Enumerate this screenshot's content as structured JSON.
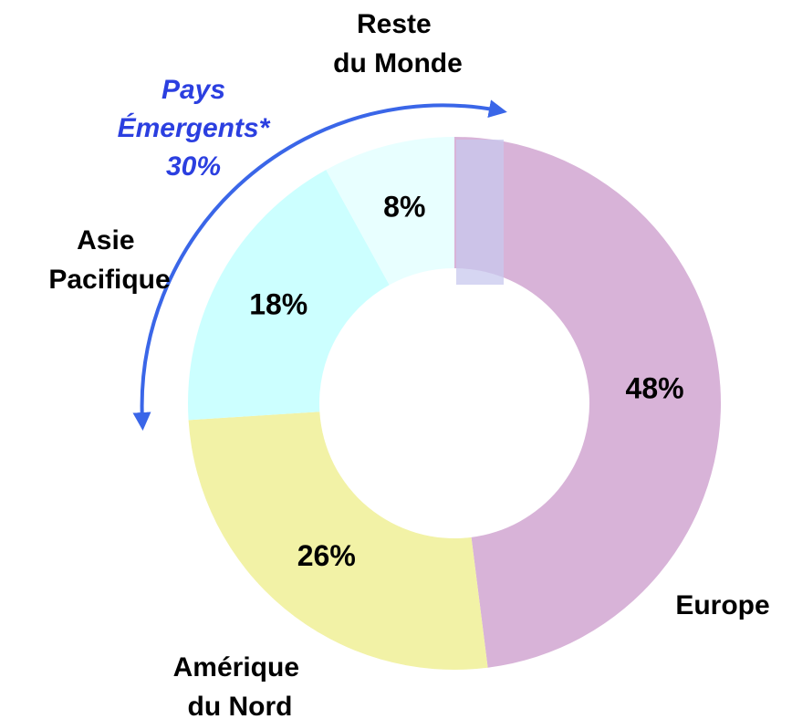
{
  "chart_data": {
    "type": "donut",
    "categories": [
      "Europe",
      "Amérique du Nord",
      "Asie Pacifique",
      "Reste du Monde"
    ],
    "values": [
      48,
      26,
      18,
      8
    ],
    "value_labels": [
      "48%",
      "26%",
      "18%",
      "8%"
    ],
    "colors": [
      "#d8b3d8",
      "#f2f2a6",
      "#ccffff",
      "#e8ffff"
    ],
    "annotation": {
      "lines": [
        "Pays",
        "Émergents*",
        "30%"
      ],
      "color": "#2b3fe0"
    }
  }
}
